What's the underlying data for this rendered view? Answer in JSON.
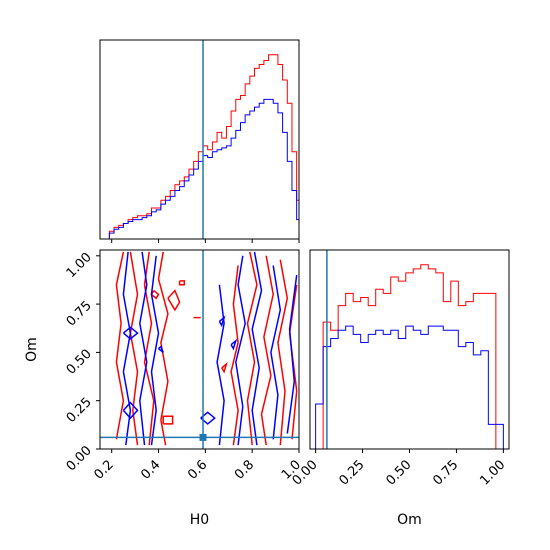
{
  "colors": {
    "series_red": "#ff0000",
    "series_blue": "#0000ff",
    "truth": "#1f77b4",
    "axis": "#000000"
  },
  "chart_data": [
    {
      "type": "histogram",
      "panel": "H0 marginal",
      "xlim": [
        0.15,
        1.0
      ],
      "x_ticks": [
        0.2,
        0.4,
        0.6,
        0.8,
        1.0
      ],
      "truth": 0.59,
      "bin_edges": [
        0.15,
        0.19,
        0.21,
        0.23,
        0.25,
        0.27,
        0.29,
        0.31,
        0.33,
        0.35,
        0.37,
        0.39,
        0.41,
        0.43,
        0.45,
        0.47,
        0.49,
        0.51,
        0.53,
        0.55,
        0.57,
        0.59,
        0.61,
        0.63,
        0.65,
        0.67,
        0.69,
        0.71,
        0.73,
        0.75,
        0.77,
        0.79,
        0.81,
        0.83,
        0.85,
        0.87,
        0.89,
        0.91,
        0.93,
        0.95,
        0.97,
        0.99,
        1.0
      ],
      "series": [
        {
          "color": "red",
          "values": [
            0.0,
            0.04,
            0.06,
            0.07,
            0.08,
            0.1,
            0.11,
            0.12,
            0.12,
            0.13,
            0.16,
            0.16,
            0.2,
            0.22,
            0.25,
            0.28,
            0.3,
            0.32,
            0.36,
            0.4,
            0.45,
            0.48,
            0.46,
            0.5,
            0.55,
            0.52,
            0.58,
            0.66,
            0.72,
            0.74,
            0.8,
            0.84,
            0.88,
            0.9,
            0.92,
            0.95,
            0.95,
            0.9,
            0.82,
            0.7,
            0.45,
            0.2
          ]
        },
        {
          "color": "blue",
          "values": [
            0.0,
            0.03,
            0.05,
            0.06,
            0.08,
            0.09,
            0.1,
            0.1,
            0.11,
            0.12,
            0.14,
            0.15,
            0.18,
            0.2,
            0.22,
            0.25,
            0.27,
            0.3,
            0.33,
            0.36,
            0.4,
            0.43,
            0.42,
            0.45,
            0.46,
            0.47,
            0.48,
            0.52,
            0.56,
            0.6,
            0.64,
            0.66,
            0.68,
            0.7,
            0.72,
            0.72,
            0.7,
            0.65,
            0.55,
            0.4,
            0.25,
            0.1
          ]
        }
      ]
    },
    {
      "type": "contour",
      "panel": "H0 vs Om",
      "xlabel": "H0",
      "ylabel": "Om",
      "xlim": [
        0.15,
        1.0
      ],
      "ylim": [
        0.0,
        1.03
      ],
      "x_ticks": [
        0.2,
        0.4,
        0.6,
        0.8,
        1.0
      ],
      "y_ticks": [
        0.0,
        0.25,
        0.5,
        0.75,
        1.0
      ],
      "truth": {
        "x": 0.59,
        "y": 0.06
      },
      "series": [
        {
          "color": "red",
          "contours": [
            [
              [
                0.25,
                1.02
              ],
              [
                0.22,
                0.85
              ],
              [
                0.24,
                0.65
              ],
              [
                0.22,
                0.45
              ],
              [
                0.25,
                0.25
              ],
              [
                0.22,
                0.05
              ]
            ],
            [
              [
                0.28,
                1.02
              ],
              [
                0.31,
                0.8
              ],
              [
                0.28,
                0.6
              ],
              [
                0.31,
                0.4
              ],
              [
                0.29,
                0.2
              ],
              [
                0.31,
                0.02
              ]
            ],
            [
              [
                0.36,
                1.02
              ],
              [
                0.34,
                0.85
              ],
              [
                0.37,
                0.65
              ],
              [
                0.34,
                0.45
              ],
              [
                0.38,
                0.25
              ],
              [
                0.36,
                0.02
              ]
            ],
            [
              [
                0.42,
                1.02
              ],
              [
                0.4,
                0.88
              ],
              [
                0.44,
                0.7
              ],
              [
                0.41,
                0.55
              ],
              [
                0.44,
                0.35
              ],
              [
                0.41,
                0.15
              ],
              [
                0.43,
                0.02
              ]
            ],
            [
              [
                0.72,
                0.02
              ],
              [
                0.74,
                0.2
              ],
              [
                0.71,
                0.4
              ],
              [
                0.74,
                0.55
              ],
              [
                0.72,
                0.75
              ],
              [
                0.74,
                0.95
              ]
            ],
            [
              [
                0.8,
                0.02
              ],
              [
                0.78,
                0.25
              ],
              [
                0.81,
                0.45
              ],
              [
                0.78,
                0.65
              ],
              [
                0.82,
                0.85
              ],
              [
                0.79,
                1.02
              ]
            ],
            [
              [
                0.86,
                0.02
              ],
              [
                0.84,
                0.18
              ],
              [
                0.88,
                0.38
              ],
              [
                0.85,
                0.58
              ],
              [
                0.89,
                0.8
              ],
              [
                0.86,
                1.0
              ]
            ],
            [
              [
                0.92,
                0.02
              ],
              [
                0.94,
                0.3
              ],
              [
                0.91,
                0.55
              ],
              [
                0.95,
                0.78
              ],
              [
                0.92,
                0.98
              ]
            ],
            [
              [
                0.97,
                0.05
              ],
              [
                0.99,
                0.3
              ],
              [
                0.96,
                0.6
              ],
              [
                0.99,
                0.85
              ]
            ],
            [
              [
                0.44,
                0.78
              ],
              [
                0.47,
                0.72
              ],
              [
                0.49,
                0.76
              ],
              [
                0.47,
                0.82
              ],
              [
                0.44,
                0.78
              ]
            ],
            [
              [
                0.38,
                0.82
              ],
              [
                0.4,
                0.8
              ],
              [
                0.39,
                0.78
              ],
              [
                0.37,
                0.8
              ],
              [
                0.38,
                0.82
              ]
            ],
            [
              [
                0.42,
                0.13
              ],
              [
                0.46,
                0.13
              ],
              [
                0.46,
                0.17
              ],
              [
                0.42,
                0.17
              ],
              [
                0.42,
                0.13
              ]
            ],
            [
              [
                0.49,
                0.87
              ],
              [
                0.51,
                0.87
              ],
              [
                0.51,
                0.85
              ],
              [
                0.49,
                0.85
              ],
              [
                0.49,
                0.87
              ]
            ],
            [
              [
                0.55,
                0.68
              ],
              [
                0.58,
                0.68
              ]
            ],
            [
              [
                0.67,
                0.42
              ],
              [
                0.69,
                0.44
              ],
              [
                0.68,
                0.4
              ],
              [
                0.67,
                0.42
              ]
            ]
          ]
        },
        {
          "color": "blue",
          "contours": [
            [
              [
                0.27,
                1.02
              ],
              [
                0.25,
                0.8
              ],
              [
                0.28,
                0.6
              ],
              [
                0.25,
                0.4
              ],
              [
                0.28,
                0.2
              ],
              [
                0.26,
                0.02
              ]
            ],
            [
              [
                0.33,
                1.02
              ],
              [
                0.35,
                0.85
              ],
              [
                0.32,
                0.65
              ],
              [
                0.35,
                0.45
              ],
              [
                0.32,
                0.25
              ],
              [
                0.34,
                0.02
              ]
            ],
            [
              [
                0.39,
                1.0
              ],
              [
                0.37,
                0.8
              ],
              [
                0.4,
                0.6
              ],
              [
                0.37,
                0.4
              ],
              [
                0.39,
                0.2
              ],
              [
                0.37,
                0.02
              ]
            ],
            [
              [
                0.66,
                0.02
              ],
              [
                0.68,
                0.25
              ],
              [
                0.65,
                0.45
              ],
              [
                0.68,
                0.65
              ],
              [
                0.66,
                0.85
              ]
            ],
            [
              [
                0.74,
                0.02
              ],
              [
                0.76,
                0.22
              ],
              [
                0.73,
                0.45
              ],
              [
                0.77,
                0.65
              ],
              [
                0.74,
                0.85
              ],
              [
                0.76,
                1.0
              ]
            ],
            [
              [
                0.82,
                0.02
              ],
              [
                0.8,
                0.2
              ],
              [
                0.83,
                0.42
              ],
              [
                0.8,
                0.62
              ],
              [
                0.84,
                0.82
              ],
              [
                0.81,
                1.02
              ]
            ],
            [
              [
                0.89,
                0.05
              ],
              [
                0.91,
                0.28
              ],
              [
                0.88,
                0.5
              ],
              [
                0.92,
                0.72
              ],
              [
                0.89,
                0.95
              ]
            ],
            [
              [
                0.95,
                0.08
              ],
              [
                0.98,
                0.35
              ],
              [
                0.96,
                0.62
              ],
              [
                0.99,
                0.9
              ]
            ],
            [
              [
                0.25,
                0.2
              ],
              [
                0.28,
                0.16
              ],
              [
                0.31,
                0.2
              ],
              [
                0.28,
                0.24
              ],
              [
                0.25,
                0.2
              ]
            ],
            [
              [
                0.58,
                0.16
              ],
              [
                0.61,
                0.13
              ],
              [
                0.64,
                0.16
              ],
              [
                0.61,
                0.19
              ],
              [
                0.58,
                0.16
              ]
            ],
            [
              [
                0.25,
                0.6
              ],
              [
                0.28,
                0.57
              ],
              [
                0.31,
                0.6
              ],
              [
                0.28,
                0.63
              ],
              [
                0.25,
                0.6
              ]
            ],
            [
              [
                0.4,
                0.52
              ],
              [
                0.42,
                0.5
              ],
              [
                0.41,
                0.53
              ],
              [
                0.4,
                0.52
              ]
            ],
            [
              [
                0.66,
                0.66
              ],
              [
                0.68,
                0.68
              ],
              [
                0.67,
                0.64
              ],
              [
                0.66,
                0.66
              ]
            ],
            [
              [
                0.71,
                0.54
              ],
              [
                0.73,
                0.56
              ],
              [
                0.72,
                0.52
              ],
              [
                0.71,
                0.54
              ]
            ]
          ]
        }
      ]
    },
    {
      "type": "histogram",
      "panel": "Om marginal",
      "xlabel": "Om",
      "xlim": [
        -0.03,
        1.03
      ],
      "x_ticks": [
        0.0,
        0.25,
        0.5,
        0.75,
        1.0
      ],
      "truth": 0.06,
      "bin_edges": [
        0.0,
        0.04,
        0.08,
        0.12,
        0.16,
        0.2,
        0.24,
        0.28,
        0.32,
        0.36,
        0.4,
        0.44,
        0.48,
        0.52,
        0.56,
        0.6,
        0.64,
        0.68,
        0.72,
        0.76,
        0.8,
        0.84,
        0.88,
        0.92,
        0.96,
        1.0
      ],
      "series": [
        {
          "color": "red",
          "values": [
            0.0,
            0.62,
            0.58,
            0.7,
            0.76,
            0.72,
            0.74,
            0.7,
            0.78,
            0.76,
            0.84,
            0.82,
            0.86,
            0.88,
            0.9,
            0.88,
            0.86,
            0.72,
            0.82,
            0.7,
            0.72,
            0.76,
            0.76,
            0.76,
            0.0
          ]
        },
        {
          "color": "blue",
          "values": [
            0.22,
            0.5,
            0.54,
            0.58,
            0.6,
            0.56,
            0.52,
            0.56,
            0.58,
            0.56,
            0.58,
            0.54,
            0.6,
            0.58,
            0.56,
            0.6,
            0.6,
            0.58,
            0.58,
            0.5,
            0.52,
            0.46,
            0.48,
            0.12,
            0.12
          ]
        }
      ]
    }
  ]
}
